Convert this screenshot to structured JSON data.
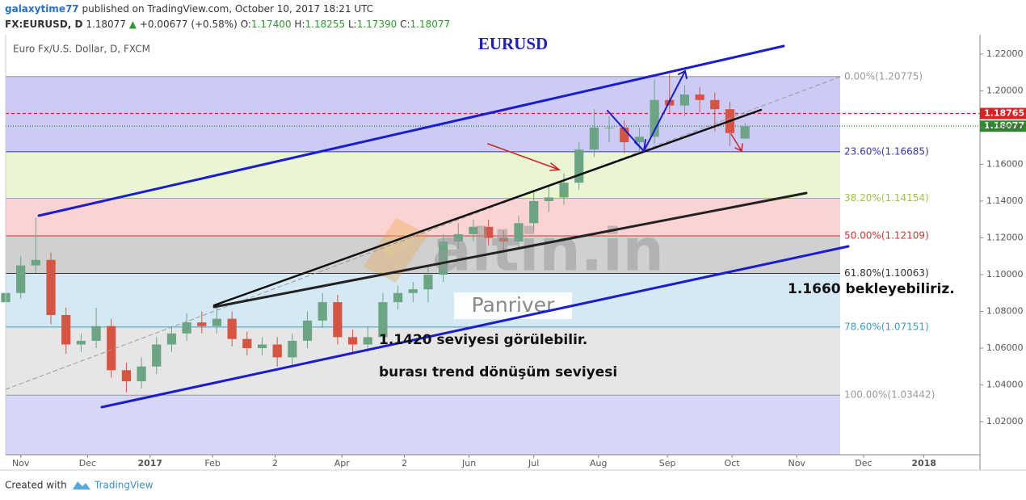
{
  "header": {
    "author": "galaxytime77",
    "published": "published on TradingView.com, October 10, 2017 18:21 UTC",
    "symbol": "FX:EURUSD, D",
    "last": "1.18077",
    "arrow": "▲",
    "change": "+0.00677 (+0.58%)",
    "ohlc": [
      "O:",
      "1.17400",
      "H:",
      "1.18255",
      "L:",
      "1.17390",
      "C:",
      "1.18077"
    ]
  },
  "chart_data": {
    "type": "candlestick",
    "title": "EURUSD",
    "legend_text": "Euro Fx/U.S. Dollar, D, FXCM",
    "up_color": "#6ba583",
    "down_color": "#d75442",
    "x": [
      0,
      7,
      14,
      21,
      28,
      35,
      42,
      49,
      56,
      63,
      70,
      77,
      84,
      91,
      98,
      105,
      112,
      119,
      126,
      133,
      140,
      147,
      154,
      161,
      168,
      175,
      182,
      189,
      196,
      203,
      210,
      217,
      224,
      231,
      238,
      245,
      252,
      259,
      266,
      273,
      280,
      287,
      294,
      301,
      308,
      315,
      322,
      329,
      336,
      343
    ],
    "open": [
      1.085,
      1.09,
      1.105,
      1.108,
      1.078,
      1.062,
      1.064,
      1.072,
      1.048,
      1.042,
      1.05,
      1.062,
      1.068,
      1.074,
      1.072,
      1.076,
      1.065,
      1.06,
      1.062,
      1.055,
      1.064,
      1.075,
      1.085,
      1.066,
      1.062,
      1.066,
      1.085,
      1.09,
      1.092,
      1.1,
      1.118,
      1.122,
      1.126,
      1.12,
      1.118,
      1.128,
      1.14,
      1.142,
      1.15,
      1.168,
      1.18,
      1.18,
      1.172,
      1.175,
      1.195,
      1.192,
      1.198,
      1.195,
      1.19,
      1.174
    ],
    "high": [
      1.094,
      1.11,
      1.131,
      1.112,
      1.082,
      1.068,
      1.082,
      1.076,
      1.052,
      1.055,
      1.066,
      1.072,
      1.079,
      1.08,
      1.083,
      1.08,
      1.069,
      1.066,
      1.066,
      1.068,
      1.08,
      1.09,
      1.089,
      1.07,
      1.072,
      1.09,
      1.094,
      1.096,
      1.104,
      1.122,
      1.128,
      1.13,
      1.13,
      1.124,
      1.132,
      1.145,
      1.148,
      1.155,
      1.172,
      1.19,
      1.186,
      1.184,
      1.18,
      1.206,
      1.209,
      1.203,
      1.202,
      1.199,
      1.194,
      1.18255
    ],
    "low": [
      1.081,
      1.087,
      1.101,
      1.073,
      1.057,
      1.058,
      1.06,
      1.044,
      1.036,
      1.038,
      1.046,
      1.058,
      1.064,
      1.068,
      1.068,
      1.061,
      1.056,
      1.056,
      1.05,
      1.051,
      1.06,
      1.071,
      1.062,
      1.058,
      1.058,
      1.062,
      1.081,
      1.085,
      1.085,
      1.096,
      1.114,
      1.118,
      1.116,
      1.112,
      1.114,
      1.124,
      1.134,
      1.138,
      1.146,
      1.164,
      1.172,
      1.166,
      1.166,
      1.171,
      1.188,
      1.186,
      1.188,
      1.178,
      1.17,
      1.1739
    ],
    "close": [
      1.09,
      1.105,
      1.108,
      1.078,
      1.062,
      1.064,
      1.072,
      1.048,
      1.042,
      1.05,
      1.062,
      1.068,
      1.074,
      1.072,
      1.076,
      1.065,
      1.06,
      1.062,
      1.055,
      1.064,
      1.075,
      1.085,
      1.066,
      1.062,
      1.066,
      1.085,
      1.09,
      1.092,
      1.1,
      1.118,
      1.122,
      1.126,
      1.12,
      1.118,
      1.128,
      1.14,
      1.142,
      1.15,
      1.168,
      1.18,
      1.18,
      1.172,
      1.175,
      1.195,
      1.192,
      1.198,
      1.195,
      1.19,
      1.177,
      1.18077
    ],
    "xlim": [
      0,
      452
    ],
    "xticks": [
      {
        "value": 7,
        "label": "Nov"
      },
      {
        "value": 38,
        "label": "Dec"
      },
      {
        "value": 67,
        "label": "2017"
      },
      {
        "value": 96,
        "label": "Feb"
      },
      {
        "value": 125,
        "label": "2"
      },
      {
        "value": 156,
        "label": "Apr"
      },
      {
        "value": 185,
        "label": "2"
      },
      {
        "value": 215,
        "label": "Jun"
      },
      {
        "value": 245,
        "label": "Jul"
      },
      {
        "value": 275,
        "label": "Aug"
      },
      {
        "value": 307,
        "label": "Sep"
      },
      {
        "value": 337,
        "label": "Oct"
      },
      {
        "value": 367,
        "label": "Nov"
      },
      {
        "value": 398,
        "label": "Dec"
      },
      {
        "value": 426,
        "label": "2018"
      }
    ],
    "ylim": [
      1.002,
      1.2305
    ],
    "yticks": [
      {
        "value": 1.02,
        "label": "1.02000"
      },
      {
        "value": 1.04,
        "label": "1.04000"
      },
      {
        "value": 1.06,
        "label": "1.06000"
      },
      {
        "value": 1.08,
        "label": "1.08000"
      },
      {
        "value": 1.1,
        "label": "1.10000"
      },
      {
        "value": 1.12,
        "label": "1.12000"
      },
      {
        "value": 1.14,
        "label": "1.14000"
      },
      {
        "value": 1.16,
        "label": "1.16000"
      },
      {
        "value": 1.18,
        "label": "1.18000"
      },
      {
        "value": 1.2,
        "label": "1.20000"
      },
      {
        "value": 1.22,
        "label": "1.22000"
      }
    ],
    "fib_levels": [
      {
        "value": 1.20775,
        "label": "0.00%(1.20775)",
        "color": "#999999",
        "fill": "#cbcbf6"
      },
      {
        "value": 1.16685,
        "label": "23.60%(1.16685)",
        "color": "#3333bb",
        "fill": "#eaf5d6"
      },
      {
        "value": 1.14154,
        "label": "38.20%(1.14154)",
        "color": "#9cc34a",
        "fill": "#fbd3d3"
      },
      {
        "value": 1.12109,
        "label": "50.00%(1.12109)",
        "color": "#d93030",
        "fill": "#d0d0d0"
      },
      {
        "value": 1.10063,
        "label": "61.80%(1.10063)",
        "color": "#333333",
        "fill": "#d5e9f5"
      },
      {
        "value": 1.07151,
        "label": "78.60%(1.07151)",
        "color": "#3a9cc4",
        "fill": "#e6e6e6"
      },
      {
        "value": 1.03442,
        "label": "100.00%(1.03442)",
        "color": "#999999",
        "fill": "#d6d6f6"
      }
    ],
    "price_lines": [
      {
        "value": 1.18765,
        "label": "1.18765",
        "color": "#e02020",
        "dash": "4,3"
      },
      {
        "value": 1.18077,
        "label": "1.18077",
        "color": "#2e8b2e",
        "dash": "1,2"
      }
    ],
    "annotations": [
      "1.1420 seviyesi görülebilir.",
      "burası trend dönüşüm seviyesi",
      "1.1660 bekleyebiliriz."
    ]
  },
  "watermark": {
    "brand": "altin.in",
    "name": "Panriver"
  },
  "footer": {
    "created": "Created with",
    "brand": "TradingView"
  }
}
